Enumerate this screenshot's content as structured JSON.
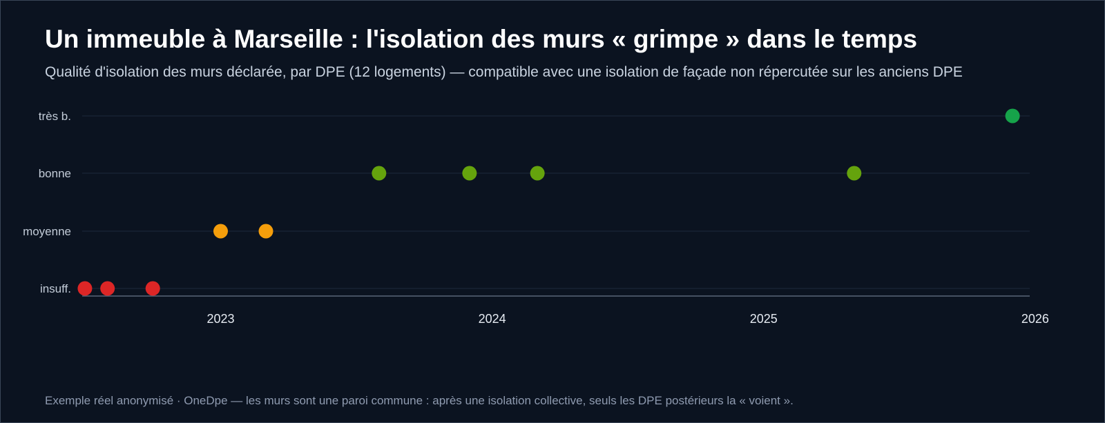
{
  "title": "Un immeuble à Marseille : l'isolation des murs « grimpe » dans le temps",
  "subtitle": "Qualité d'isolation des murs déclarée, par DPE (12 logements) — compatible avec une isolation de façade non répercutée sur les anciens DPE",
  "footer": "Exemple réel anonymisé · OneDpe — les murs sont une paroi commune : après une isolation collective, seuls les DPE postérieurs la « voient ».",
  "chart_data": {
    "type": "scatter",
    "title": "Un immeuble à Marseille : l'isolation des murs « grimpe » dans le temps",
    "xlabel": "",
    "ylabel": "",
    "x_tick_labels": [
      "2023",
      "2024",
      "2025",
      "2026"
    ],
    "x_ticks": [
      2023,
      2024,
      2025,
      2026
    ],
    "xlim": [
      2022.49,
      2025.98
    ],
    "y_categories": [
      "insuff.",
      "moyenne",
      "bonne",
      "très b."
    ],
    "grid": "horizontal",
    "legend": "none",
    "colors": {
      "insuff.": "#dc2626",
      "moyenne": "#f59e0b",
      "bonne": "#65a30d",
      "très b.": "#16a34a"
    },
    "points": [
      {
        "date": "2022-07",
        "quality": "insuff."
      },
      {
        "date": "2022-08",
        "quality": "insuff."
      },
      {
        "date": "2022-10",
        "quality": "insuff."
      },
      {
        "date": "2023-01",
        "quality": "moyenne"
      },
      {
        "date": "2023-03",
        "quality": "moyenne"
      },
      {
        "date": "2023-08",
        "quality": "bonne"
      },
      {
        "date": "2023-12",
        "quality": "bonne"
      },
      {
        "date": "2024-03",
        "quality": "bonne"
      },
      {
        "date": "2025-05",
        "quality": "bonne"
      },
      {
        "date": "2025-12",
        "quality": "très b."
      }
    ]
  },
  "colors": {
    "background": "#0b1320",
    "grid": "#1e2a3b",
    "axis": "#5b6678"
  }
}
